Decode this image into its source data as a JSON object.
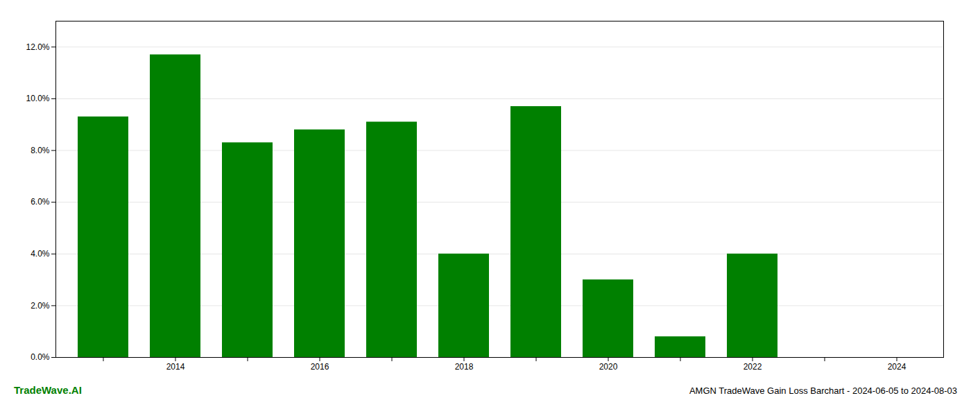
{
  "chart_data": {
    "type": "bar",
    "title": "AMGN TradeWave Gain Loss Barchart - 2024-06-05 to 2024-08-03",
    "annotations": [
      {
        "text": "TradeWave.AI",
        "color": "#008000"
      }
    ],
    "categories": [
      null,
      "2014",
      null,
      "2016",
      null,
      "2018",
      null,
      "2020",
      null,
      "2022",
      null,
      "2024"
    ],
    "values": [
      0.093,
      0.117,
      0.083,
      0.088,
      0.091,
      0.04,
      0.097,
      0.03,
      0.008,
      0.04,
      0.0,
      0.0
    ],
    "color": "#008000",
    "ylim": [
      0.0,
      0.13
    ],
    "yticks": [
      {
        "value": 0,
        "label": "0.0%"
      },
      {
        "value": 0.02,
        "label": "2.0%"
      },
      {
        "value": 0.04,
        "label": "4.0%"
      },
      {
        "value": 0.06,
        "label": "6.0%"
      },
      {
        "value": 0.08,
        "label": "8.0%"
      },
      {
        "value": 0.1,
        "label": "10.0%"
      },
      {
        "value": 0.12,
        "label": "12.0%"
      }
    ],
    "grid": true
  }
}
